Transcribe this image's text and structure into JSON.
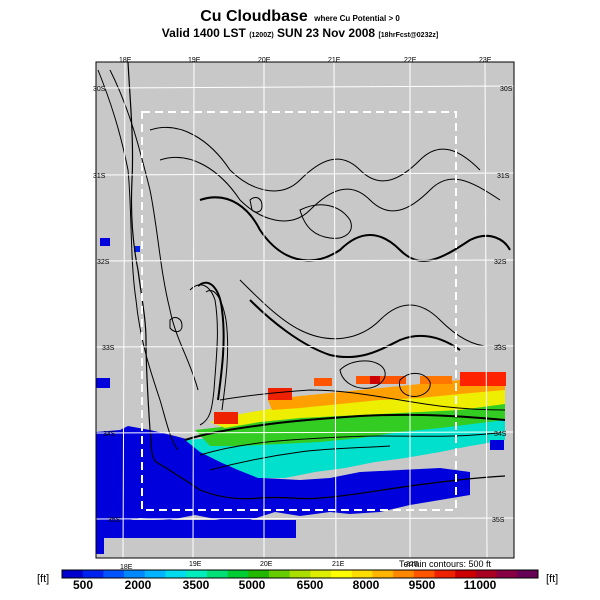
{
  "title": {
    "main": "Cu Cloudbase",
    "main_note": "where Cu Potential > 0",
    "valid_line": "Valid 1400 LST",
    "valid_utc": "(1200Z)",
    "valid_date": "SUN 23 Nov 2008",
    "forecast_note": "[18hrFcst@0232z]"
  },
  "map": {
    "lon_labels_top": [
      "18E",
      "19E",
      "20E",
      "21E",
      "22E",
      "23E"
    ],
    "lon_labels_bottom": [
      "18E",
      "19E",
      "20E",
      "21E",
      "22E"
    ],
    "lat_labels_left": [
      "30S",
      "31S",
      "32S",
      "33S",
      "34S",
      "35S"
    ],
    "lat_labels_right": [
      "30S",
      "31S",
      "32S",
      "33S",
      "34S",
      "35S"
    ],
    "terrain_note": "Terrain contours: 500 ft",
    "background_color": "#c8c8c8"
  },
  "color_scale": {
    "unit_left": "[ft]",
    "unit_right": "[ft]",
    "labels": [
      "500",
      "2000",
      "3500",
      "5000",
      "6500",
      "8000",
      "9500",
      "11000"
    ],
    "colors": [
      "#0000cc",
      "#0022ee",
      "#0055ff",
      "#0088ff",
      "#00b4ff",
      "#00dcee",
      "#00eebb",
      "#00e077",
      "#00cc33",
      "#22b800",
      "#66cc00",
      "#aadd00",
      "#ddee00",
      "#ffff00",
      "#ffdd00",
      "#ffb400",
      "#ff8800",
      "#ff5500",
      "#ee2200",
      "#cc0000",
      "#aa0022",
      "#880044",
      "#660055"
    ]
  }
}
